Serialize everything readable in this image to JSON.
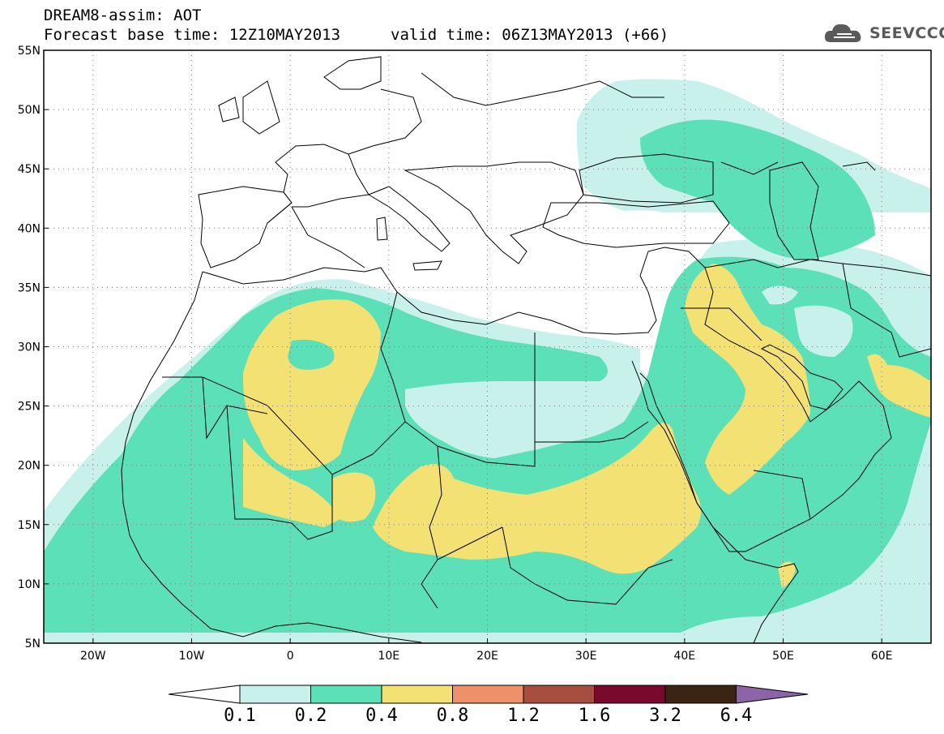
{
  "header": {
    "model_line": "DREAM8-assim: AOT",
    "base_time": "Forecast base time: 12Z10MAY2013",
    "valid_time": "valid time: 06Z13MAY2013 (+66)"
  },
  "logo": {
    "text": "SEEVCCC",
    "icon": "cloud-icon"
  },
  "map": {
    "variable": "AOT",
    "projection": "lat-lon",
    "lon_range": [
      -25,
      65
    ],
    "lat_range": [
      5,
      55
    ],
    "lat_ticks": [
      "5N",
      "10N",
      "15N",
      "20N",
      "25N",
      "30N",
      "35N",
      "40N",
      "45N",
      "50N",
      "55N"
    ],
    "lon_ticks": [
      "20W",
      "10W",
      "0",
      "10E",
      "20E",
      "30E",
      "40E",
      "50E",
      "60E"
    ],
    "grid": "dotted",
    "colors": {
      "c_01_02": "#c9f1eb",
      "c_02_04": "#5ce0b8",
      "c_04_08": "#f3e174",
      "coast": "#000000"
    }
  },
  "colorbar": {
    "levels": [
      "0.1",
      "0.2",
      "0.4",
      "0.8",
      "1.2",
      "1.6",
      "3.2",
      "6.4"
    ],
    "colors": [
      "#c9f1eb",
      "#5ce0b8",
      "#f3e174",
      "#ee916a",
      "#a84e3f",
      "#7a0a2d",
      "#3c2414"
    ],
    "low_extend_color": "#ffffff",
    "high_extend_color": "#8e64a8"
  }
}
